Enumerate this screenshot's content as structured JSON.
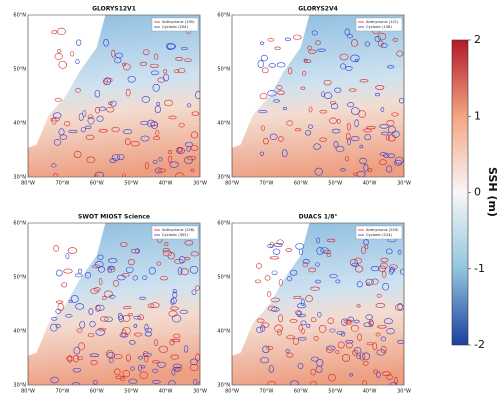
{
  "panels": [
    {
      "title": "GLORYS12V1",
      "legend": [
        "Anticyclonic (195)",
        "Cyclonic (204)"
      ]
    },
    {
      "title": "GLORYS2V4",
      "legend": [
        "Anticyclonic (121)",
        "Cyclonic (138)"
      ]
    },
    {
      "title": "SWOT MIOST Science",
      "legend": [
        "Anticyclonic (226)",
        "Cyclonic (302)"
      ]
    },
    {
      "title": "DUACS 1/8°",
      "legend": [
        "Anticyclonic (229)",
        "Cyclonic (214)"
      ]
    }
  ],
  "xticks": [
    "80°W",
    "70°W",
    "60°W",
    "50°W",
    "40°W",
    "30°W"
  ],
  "yticks": [
    "30°N",
    "40°N",
    "50°N",
    "60°N"
  ],
  "colorbar": {
    "label": "SSH (m)",
    "lim": [
      -2,
      2
    ],
    "ticks": [
      2,
      1,
      0,
      -1,
      -2
    ]
  }
}
